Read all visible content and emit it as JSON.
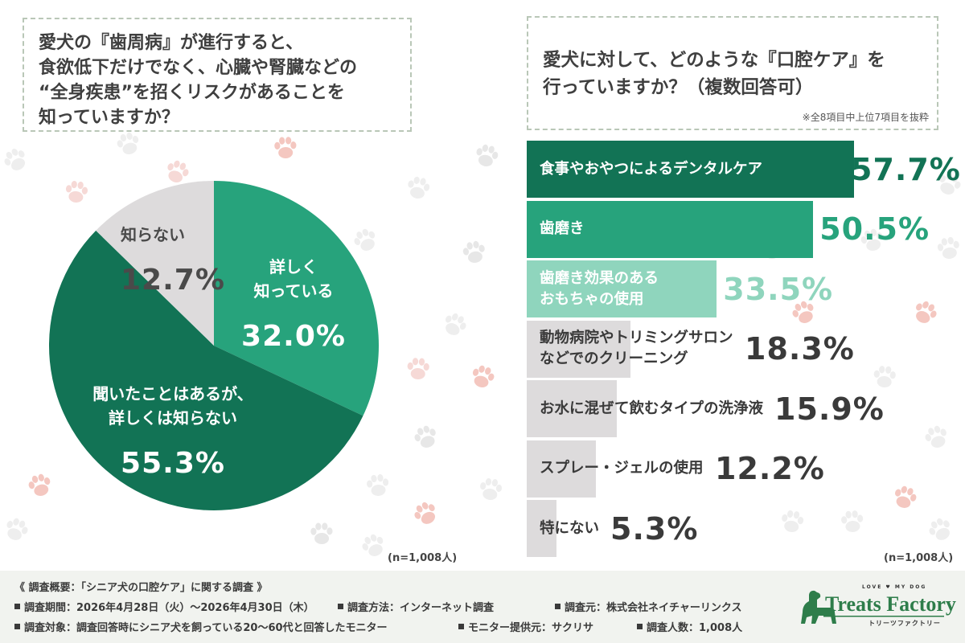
{
  "left": {
    "question": "愛犬の『歯周病』が進行すると、\n食欲低下だけでなく、心臓や腎臓などの\n“全身疾患”を招くリスクがあることを\n知っていますか？",
    "sample": "(n=1,008人)"
  },
  "right": {
    "question": "愛犬に対して、どのような『口腔ケア』を\n行っていますか？（複数回答可）",
    "note": "※全8項目中上位7項目を抜粋",
    "sample": "(n=1,008人)"
  },
  "chart_data": [
    {
      "type": "pie",
      "slices": [
        {
          "label": "詳しく\n知っている",
          "value": 32.0,
          "display": "32.0%",
          "color": "#27a37c",
          "text_color": "#ffffff"
        },
        {
          "label": "聞いたことはあるが、\n詳しくは知らない",
          "value": 55.3,
          "display": "55.3%",
          "color": "#127355",
          "text_color": "#ffffff"
        },
        {
          "label": "知らない",
          "value": 12.7,
          "display": "12.7%",
          "color": "#dddbdc",
          "text_color": "#4a4a4a"
        }
      ],
      "start": "12 o'clock",
      "direction": "clockwise"
    },
    {
      "type": "bar",
      "orientation": "horizontal",
      "unit": "%",
      "categories": [
        "食事やおやつによるデンタルケア",
        "歯磨き",
        "歯磨き効果のある\nおもちゃの使用",
        "動物病院やトリミングサロン\nなどでのクリーニング",
        "お水に混ぜて飲むタイプの洗浄液",
        "スプレー・ジェルの使用",
        "特にない"
      ],
      "values": [
        57.7,
        50.5,
        33.5,
        18.3,
        15.9,
        12.2,
        5.3
      ],
      "value_labels": [
        "57.7%",
        "50.5%",
        "33.5%",
        "18.3%",
        "15.9%",
        "12.2%",
        "5.3%"
      ],
      "colors": [
        "#127355",
        "#27a37c",
        "#8fd5bd",
        "#dddbdc",
        "#dddbdc",
        "#dddbdc",
        "#dddbdc"
      ],
      "label_colors": [
        "#ffffff",
        "#ffffff",
        "#ffffff",
        "#3a3a3a",
        "#3a3a3a",
        "#3a3a3a",
        "#3a3a3a"
      ],
      "value_colors": [
        "#127355",
        "#27a37c",
        "#8fd5bd",
        "#3a3a3a",
        "#3a3a3a",
        "#3a3a3a",
        "#3a3a3a"
      ]
    }
  ],
  "footer": {
    "title": "《 調査概要：「シニア犬の口腔ケア」に関する調査 》",
    "period": "調査期間：2026年4月28日（火）～2026年4月30日（木）",
    "method": "調査方法：インターネット調査",
    "organizer": "調査元：株式会社ネイチャーリンクス",
    "target": "調査対象：調査回答時にシニア犬を飼っている20～60代と回答したモニター",
    "provider": "モニター提供元：サクリサ",
    "count": "調査人数：1,008人"
  },
  "logo": {
    "tagline": "LOVE ♥ MY DOG",
    "name": "Treats Factory",
    "kana": "トリーツファクトリー",
    "color": "#2e7d4a"
  }
}
